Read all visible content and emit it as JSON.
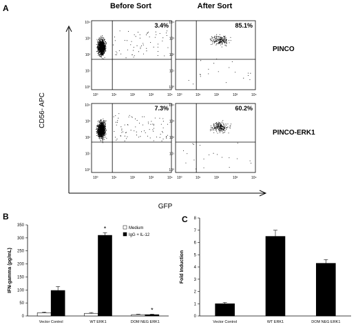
{
  "panels": {
    "a": "A",
    "b": "B",
    "c": "C"
  },
  "flow": {
    "col_before": "Before Sort",
    "col_after": "After Sort",
    "ylabel": "CD56- APC",
    "xlabel": "GFP",
    "tick_labels": [
      "10⁰",
      "10¹",
      "10²",
      "10³",
      "10⁴"
    ],
    "rows": [
      {
        "name": "PINCO",
        "before_pct": "3.4%",
        "after_pct": "85.1%"
      },
      {
        "name": "PINCO-ERK1",
        "before_pct": "7.3%",
        "after_pct": "60.2%"
      }
    ]
  },
  "chart_data": [
    {
      "type": "bar",
      "panel": "B",
      "ylabel": "IFN-gamma (pg/mL)",
      "ylim": [
        0,
        350
      ],
      "yticks": [
        0,
        50,
        100,
        150,
        200,
        250,
        300,
        350
      ],
      "categories": [
        "Vector Control",
        "WT ERK1",
        "DOM NEG ERK1"
      ],
      "series": [
        {
          "name": "Medium",
          "color": "#ffffff",
          "values": [
            12,
            10,
            5
          ],
          "errors": [
            3,
            3,
            2
          ]
        },
        {
          "name": "IgG + IL-12",
          "color": "#000000",
          "values": [
            98,
            310,
            5
          ],
          "errors": [
            15,
            10,
            2
          ]
        }
      ],
      "annotations": [
        {
          "category": "WT ERK1",
          "text": "*"
        },
        {
          "category": "DOM NEG ERK1",
          "text": "*"
        }
      ],
      "legend": "top-right",
      "grid": false
    },
    {
      "type": "bar",
      "panel": "C",
      "ylabel": "Fold Induction",
      "ylim": [
        0,
        8
      ],
      "yticks": [
        0,
        1,
        2,
        3,
        4,
        5,
        6,
        7,
        8
      ],
      "categories": [
        "Vector Control",
        "WT ERK1",
        "DOM NEG ERK1"
      ],
      "series": [
        {
          "color": "#000000",
          "values": [
            1.0,
            6.5,
            4.3
          ],
          "errors": [
            0.1,
            0.5,
            0.3
          ]
        }
      ],
      "grid": false
    }
  ]
}
